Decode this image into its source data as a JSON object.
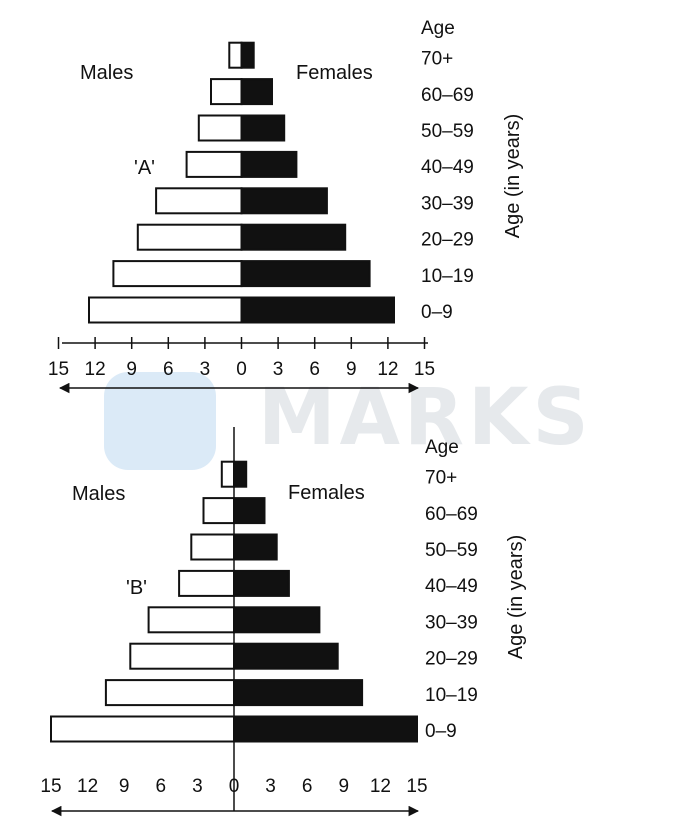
{
  "watermark": {
    "text": "MARKS",
    "color": "#e3e6ea",
    "logo_color": "#dbeaf7"
  },
  "chart_data": [
    {
      "type": "bar",
      "subtype": "population-pyramid",
      "label": "'A'",
      "left_label": "Males",
      "right_label": "Females",
      "age_header": "Age",
      "ylabel": "Age (in years)",
      "categories": [
        "0–9",
        "10–19",
        "20–29",
        "30–39",
        "40–49",
        "50–59",
        "60–69",
        "70+"
      ],
      "series": [
        {
          "name": "Males",
          "values": [
            12.5,
            10.5,
            8.5,
            7,
            4.5,
            3.5,
            2.5,
            1
          ],
          "color": "#ffffff"
        },
        {
          "name": "Females",
          "values": [
            12.5,
            10.5,
            8.5,
            7,
            4.5,
            3.5,
            2.5,
            1
          ],
          "color": "#111111"
        }
      ],
      "xticks": [
        "15",
        "12",
        "9",
        "6",
        "3",
        "0",
        "3",
        "6",
        "9",
        "12",
        "15"
      ],
      "xlim": [
        -15,
        15
      ]
    },
    {
      "type": "bar",
      "subtype": "population-pyramid",
      "label": "'B'",
      "left_label": "Males",
      "right_label": "Females",
      "age_header": "Age",
      "ylabel": "Age (in years)",
      "categories": [
        "0–9",
        "10–19",
        "20–29",
        "30–39",
        "40–49",
        "50–59",
        "60–69",
        "70+"
      ],
      "series": [
        {
          "name": "Males",
          "values": [
            15,
            10.5,
            8.5,
            7,
            4.5,
            3.5,
            2.5,
            1
          ],
          "color": "#ffffff"
        },
        {
          "name": "Females",
          "values": [
            15,
            10.5,
            8.5,
            7,
            4.5,
            3.5,
            2.5,
            1
          ],
          "color": "#111111"
        }
      ],
      "xticks": [
        "15",
        "12",
        "9",
        "6",
        "3",
        "0",
        "3",
        "6",
        "9",
        "12",
        "15"
      ],
      "xlim": [
        -15,
        15
      ]
    }
  ]
}
